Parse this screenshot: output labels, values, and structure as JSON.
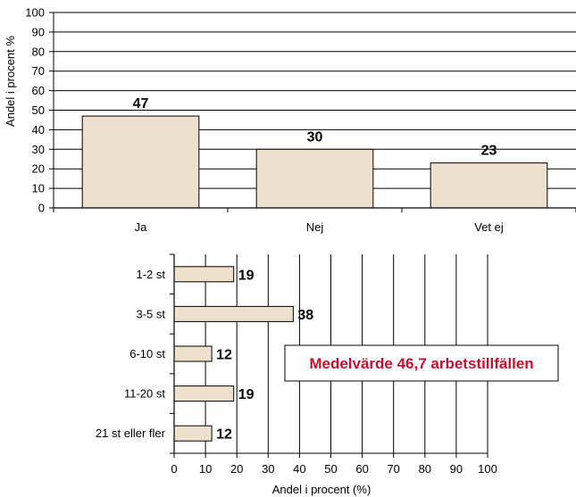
{
  "chart_data": [
    {
      "type": "bar",
      "orientation": "vertical",
      "categories": [
        "Ja",
        "Nej",
        "Vet ej"
      ],
      "values": [
        47,
        30,
        23
      ],
      "data_labels": [
        "47",
        "30",
        "23"
      ],
      "ylabel": "Andel i procent %",
      "xlabel": "",
      "ylim": [
        0,
        100
      ],
      "yticks": [
        "0",
        "10",
        "20",
        "30",
        "40",
        "50",
        "60",
        "70",
        "80",
        "90",
        "100"
      ],
      "grid": true,
      "bar_color": "#ede0cd",
      "bar_edge_color": "#000000"
    },
    {
      "type": "bar",
      "orientation": "horizontal",
      "categories": [
        "1-2 st",
        "3-5 st",
        "6-10 st",
        "11-20 st",
        "21 st eller fler"
      ],
      "values": [
        19,
        38,
        12,
        19,
        12
      ],
      "data_labels": [
        "19",
        "38",
        "12",
        "19",
        "12"
      ],
      "xlabel": "Andel i procent (%)",
      "ylabel": "",
      "xlim": [
        0,
        100
      ],
      "xticks": [
        "0",
        "10",
        "20",
        "30",
        "40",
        "50",
        "60",
        "70",
        "80",
        "90",
        "100"
      ],
      "grid": true,
      "bar_color": "#ede0cd",
      "bar_edge_color": "#000000",
      "annotation": {
        "text": "Medelvärde 46,7 arbetstillfällen",
        "color": "#c8102e"
      }
    }
  ]
}
